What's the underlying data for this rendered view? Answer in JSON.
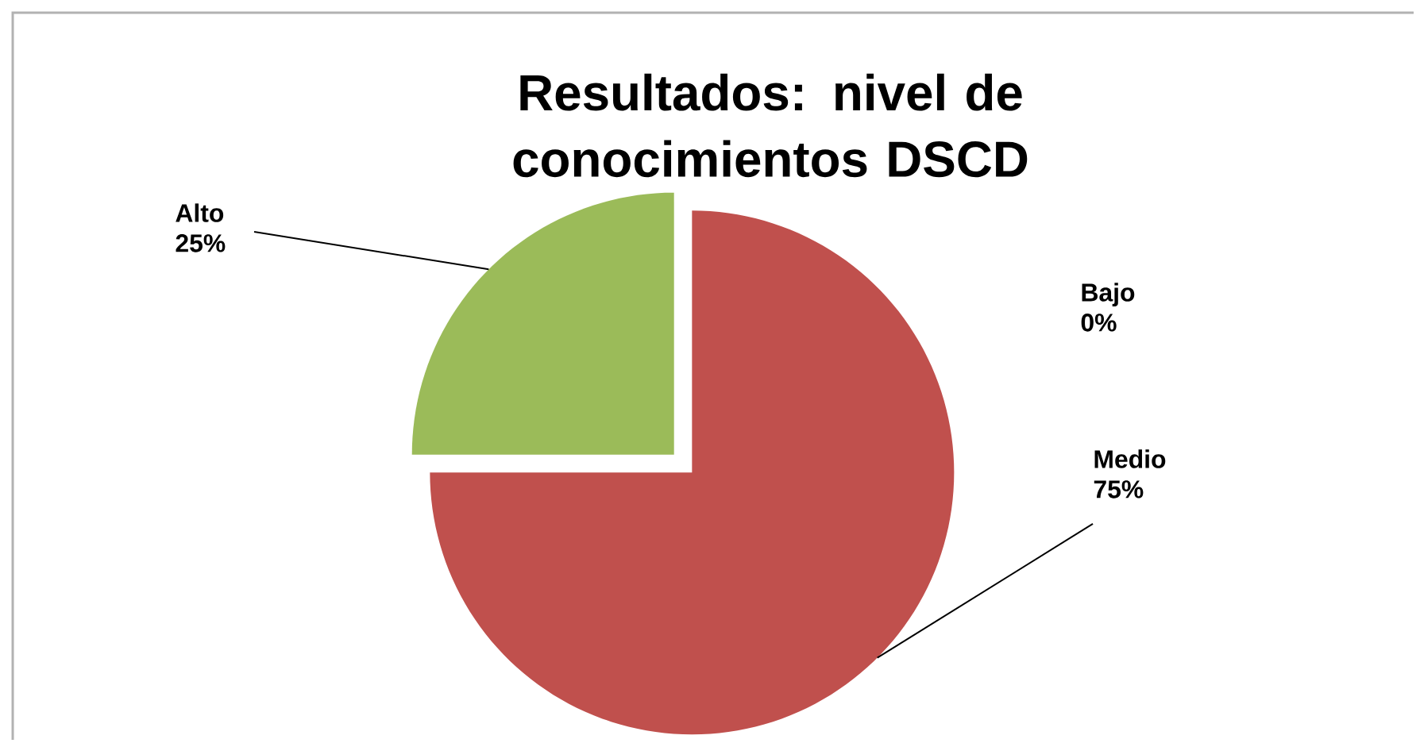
{
  "chart_data": {
    "type": "pie",
    "title": "Resultados: nivel de conocimientos DSCD",
    "categories": [
      "Bajo",
      "Medio",
      "Alto"
    ],
    "values": [
      0,
      75,
      25
    ],
    "value_labels": [
      "0%",
      "75%",
      "25%"
    ],
    "colors": [
      "#4f81bd",
      "#c0504d",
      "#9bbb59"
    ]
  }
}
